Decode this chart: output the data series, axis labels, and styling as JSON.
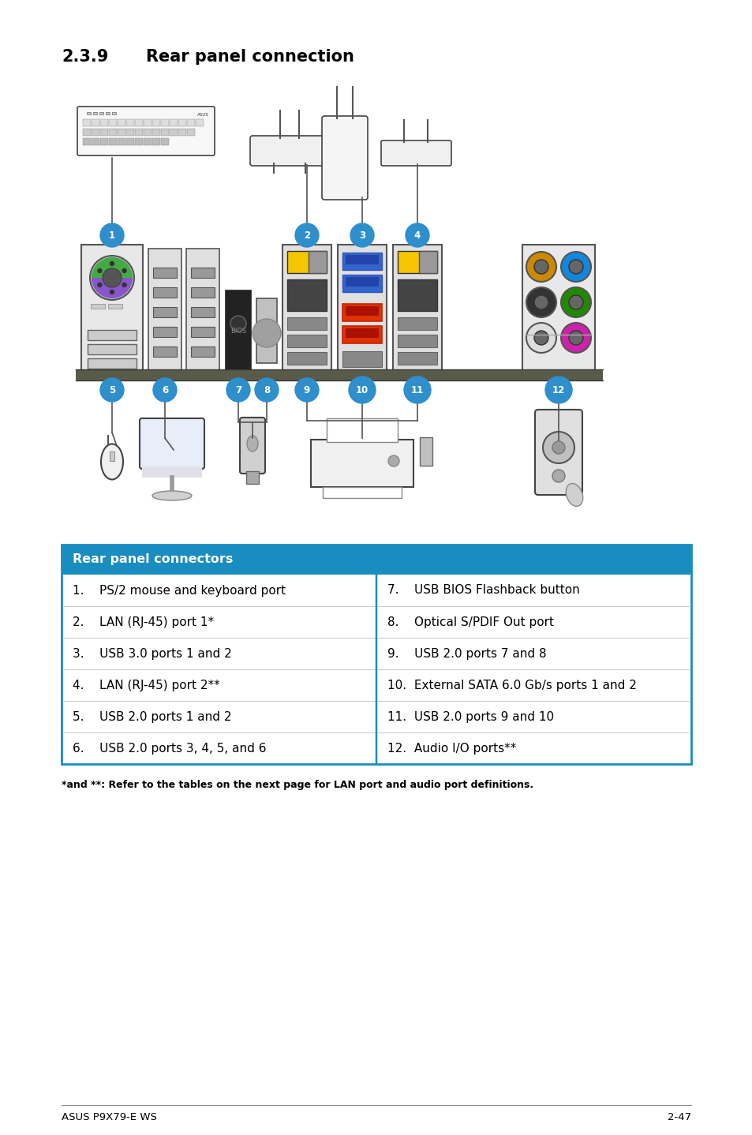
{
  "title_number": "2.3.9",
  "title_text": "Rear panel connection",
  "table_header": "Rear panel connectors",
  "table_header_bg": "#1a8dc0",
  "table_header_color": "#ffffff",
  "table_border_color": "#1a8dc0",
  "left_col": [
    "1.    PS/2 mouse and keyboard port",
    "2.    LAN (RJ-45) port 1*",
    "3.    USB 3.0 ports 1 and 2",
    "4.    LAN (RJ-45) port 2**",
    "5.    USB 2.0 ports 1 and 2",
    "6.    USB 2.0 ports 3, 4, 5, and 6"
  ],
  "right_col": [
    "7.    USB BIOS Flashback button",
    "8.    Optical S/PDIF Out port",
    "9.    USB 2.0 ports 7 and 8",
    "10.  External SATA 6.0 Gb/s ports 1 and 2",
    "11.  USB 2.0 ports 9 and 10",
    "12.  Audio I/O ports**"
  ],
  "footnote": "*and **: Refer to the tables on the next page for LAN port and audio port definitions.",
  "footer_left": "ASUS P9X79-E WS",
  "footer_right": "2-47",
  "page_bg": "#ffffff",
  "text_color": "#000000",
  "blue_circle": "#2e8fcc",
  "panel_edge": "#555555",
  "panel_face": "#e8e8e8",
  "dark_face": "#555555",
  "shelf_color": "#5a5a4a"
}
